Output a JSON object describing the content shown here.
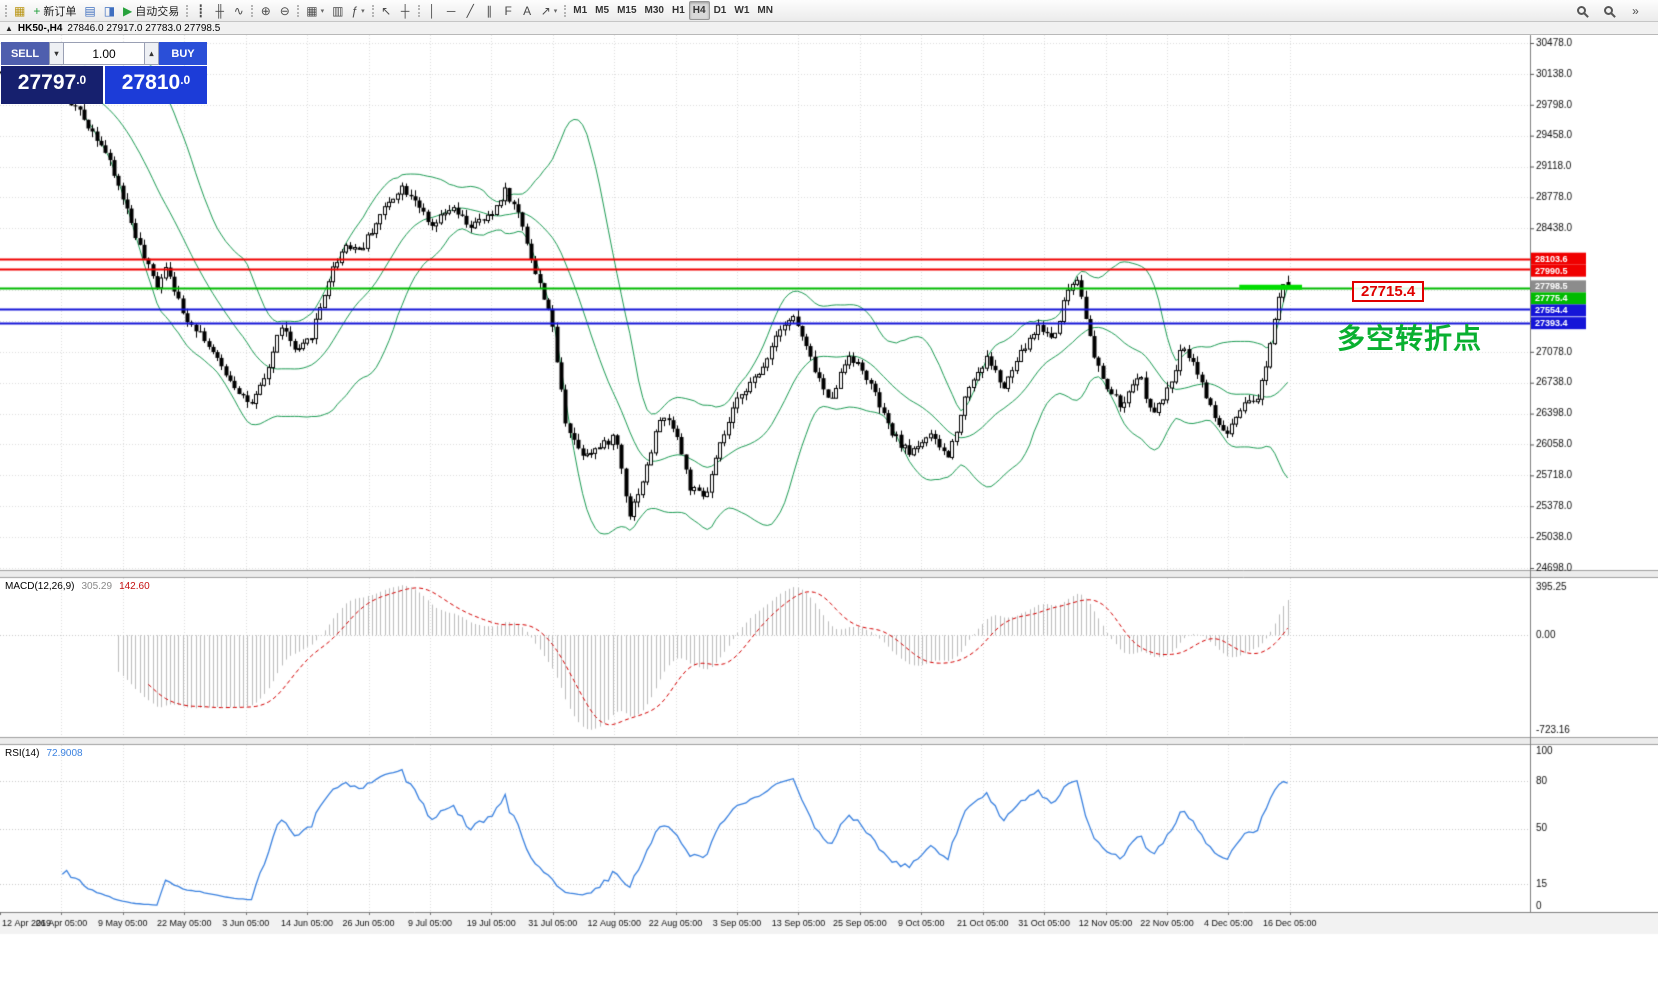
{
  "titlebar": {
    "icon": "▲",
    "symbol": "HK50-,H4",
    "ohlc": "27846.0 27917.0 27783.0 27798.5"
  },
  "trade_panel": {
    "sell_label": "SELL",
    "buy_label": "BUY",
    "volume": "1.00",
    "spin_down": "▾",
    "spin_up": "▴",
    "sell_main": "27797",
    "sell_frac": ".0",
    "buy_main": "27810",
    "buy_frac": ".0",
    "colors": {
      "sell_button": "#4f5fae",
      "buy_button": "#2a4fd8",
      "sell_price": "#16206e",
      "buy_price": "#1c3cd8"
    }
  },
  "toolbar": {
    "groups": [
      {
        "items": [
          {
            "name": "window-icon-button",
            "glyph": "▦",
            "color": "#b8930f"
          },
          {
            "name": "new-order-button",
            "glyph": "+",
            "color": "#1f9e3a",
            "label": "新订单"
          },
          {
            "name": "charts-button",
            "glyph": "▤",
            "color": "#3f6fc0"
          },
          {
            "name": "profiles-button",
            "glyph": "◨",
            "color": "#3f6fc0"
          },
          {
            "name": "autotrading-button",
            "glyph": "▶",
            "color": "#27a23c",
            "label": "自动交易"
          }
        ]
      },
      {
        "items": [
          {
            "name": "bar-chart-button",
            "glyph": "┋"
          },
          {
            "name": "candlestick-chart-button",
            "glyph": "╫"
          },
          {
            "name": "line-chart-button",
            "glyph": "∿"
          }
        ]
      },
      {
        "items": [
          {
            "name": "zoom-in-button",
            "glyph": "⊕"
          },
          {
            "name": "zoom-out-button",
            "glyph": "⊖"
          }
        ]
      },
      {
        "items": [
          {
            "name": "new-chart-button",
            "glyph": "▦",
            "caret": true
          },
          {
            "name": "tile-windows-button",
            "glyph": "▥"
          },
          {
            "name": "indicators-button",
            "glyph": "ƒ",
            "caret": true
          }
        ]
      },
      {
        "items": [
          {
            "name": "cursor-button",
            "glyph": "↖"
          },
          {
            "name": "crosshair-button",
            "glyph": "┼"
          }
        ]
      },
      {
        "items": [
          {
            "name": "vertical-line-button",
            "glyph": "│"
          },
          {
            "name": "horizontal-line-button",
            "glyph": "─"
          },
          {
            "name": "trendline-button",
            "glyph": "╱"
          },
          {
            "name": "channel-button",
            "glyph": "∥"
          },
          {
            "name": "fibonacci-button",
            "glyph": "F"
          },
          {
            "name": "text-button",
            "glyph": "A"
          },
          {
            "name": "arrows-button",
            "glyph": "↗",
            "caret": true
          }
        ]
      }
    ],
    "timeframes": [
      "M1",
      "M5",
      "M15",
      "M30",
      "H1",
      "H4",
      "D1",
      "W1",
      "MN"
    ],
    "active_timeframe": "H4",
    "right_items": [
      {
        "name": "search-button",
        "mag": true
      },
      {
        "name": "quick-search-button",
        "mag": true
      },
      {
        "name": "toolbar-overflow-button",
        "glyph": "»"
      }
    ]
  },
  "chart_data": {
    "type": "candlestick",
    "symbol": "HK50-",
    "timeframe": "H4",
    "last_candle": {
      "o": 27846.0,
      "h": 27917.0,
      "l": 27783.0,
      "c": 27798.5
    },
    "price_axis": {
      "min": 24698.0,
      "max": 30478.0,
      "step": 340.0
    },
    "time_labels": [
      "12 Apr 2019",
      "26 Apr 05:00",
      "9 May 05:00",
      "22 May 05:00",
      "3 Jun 05:00",
      "14 Jun 05:00",
      "26 Jun 05:00",
      "9 Jul 05:00",
      "19 Jul 05:00",
      "31 Jul 05:00",
      "12 Aug 05:00",
      "22 Aug 05:00",
      "3 Sep 05:00",
      "13 Sep 05:00",
      "25 Sep 05:00",
      "9 Oct 05:00",
      "21 Oct 05:00",
      "31 Oct 05:00",
      "12 Nov 05:00",
      "22 Nov 05:00",
      "4 Dec 05:00",
      "16 Dec 05:00"
    ],
    "candle_count": 300,
    "visible_fraction": 0.843,
    "seed": 42,
    "body_noise": 90,
    "wick_noise": 70,
    "price_path": [
      [
        0.0,
        30150
      ],
      [
        0.023,
        30050
      ],
      [
        0.047,
        29900
      ],
      [
        0.058,
        29750
      ],
      [
        0.078,
        29350
      ],
      [
        0.093,
        28800
      ],
      [
        0.109,
        28150
      ],
      [
        0.12,
        27800
      ],
      [
        0.128,
        28050
      ],
      [
        0.14,
        27500
      ],
      [
        0.155,
        27280
      ],
      [
        0.167,
        26980
      ],
      [
        0.182,
        26680
      ],
      [
        0.194,
        26480
      ],
      [
        0.205,
        26800
      ],
      [
        0.217,
        27380
      ],
      [
        0.229,
        27050
      ],
      [
        0.24,
        27230
      ],
      [
        0.256,
        27950
      ],
      [
        0.267,
        28260
      ],
      [
        0.279,
        28200
      ],
      [
        0.295,
        28600
      ],
      [
        0.31,
        28900
      ],
      [
        0.322,
        28760
      ],
      [
        0.333,
        28420
      ],
      [
        0.349,
        28660
      ],
      [
        0.364,
        28460
      ],
      [
        0.38,
        28560
      ],
      [
        0.391,
        28860
      ],
      [
        0.403,
        28560
      ],
      [
        0.415,
        27920
      ],
      [
        0.426,
        27520
      ],
      [
        0.438,
        26320
      ],
      [
        0.45,
        25960
      ],
      [
        0.465,
        26020
      ],
      [
        0.477,
        26160
      ],
      [
        0.488,
        25280
      ],
      [
        0.5,
        25720
      ],
      [
        0.512,
        26360
      ],
      [
        0.523,
        26260
      ],
      [
        0.535,
        25580
      ],
      [
        0.547,
        25460
      ],
      [
        0.558,
        26020
      ],
      [
        0.574,
        26620
      ],
      [
        0.589,
        26820
      ],
      [
        0.605,
        27360
      ],
      [
        0.616,
        27460
      ],
      [
        0.628,
        27020
      ],
      [
        0.643,
        26520
      ],
      [
        0.659,
        27060
      ],
      [
        0.674,
        26760
      ],
      [
        0.69,
        26220
      ],
      [
        0.705,
        25960
      ],
      [
        0.721,
        26160
      ],
      [
        0.736,
        25920
      ],
      [
        0.752,
        26700
      ],
      [
        0.767,
        27020
      ],
      [
        0.779,
        26660
      ],
      [
        0.791,
        27020
      ],
      [
        0.806,
        27360
      ],
      [
        0.818,
        27220
      ],
      [
        0.829,
        27760
      ],
      [
        0.837,
        27900
      ],
      [
        0.849,
        27020
      ],
      [
        0.86,
        26660
      ],
      [
        0.872,
        26460
      ],
      [
        0.884,
        26860
      ],
      [
        0.895,
        26360
      ],
      [
        0.907,
        26660
      ],
      [
        0.919,
        27160
      ],
      [
        0.93,
        26860
      ],
      [
        0.942,
        26360
      ],
      [
        0.953,
        26160
      ],
      [
        0.965,
        26460
      ],
      [
        0.977,
        26560
      ],
      [
        0.986,
        27120
      ],
      [
        0.995,
        27860
      ],
      [
        1.0,
        27798.5
      ]
    ],
    "bollinger": {
      "period": 20,
      "deviation": 2,
      "color": "#1d9c54"
    },
    "hlines": [
      {
        "price": 28103.6,
        "color": "#f00000",
        "width": 2
      },
      {
        "price": 27990.5,
        "color": "#f00000",
        "width": 2
      },
      {
        "price": 27775.4,
        "color": "#00bb00",
        "width": 2
      },
      {
        "price": 27554.4,
        "color": "#1515d8",
        "width": 2
      },
      {
        "price": 27393.4,
        "color": "#1515d8",
        "width": 2
      }
    ],
    "current_price_tag": {
      "price": 27798.5,
      "color": "#8c8c8c"
    },
    "highlight_segment": {
      "price": 27790,
      "x_from": 0.81,
      "x_to": 0.851,
      "color": "#00dd00",
      "width": 5
    },
    "annotations": {
      "callout_text": "27715.4",
      "turning_point_text": "多空转折点"
    },
    "macd": {
      "label": "MACD(12,26,9)",
      "value_main": "305.29",
      "value_signal": "142.60",
      "fast": 12,
      "slow": 26,
      "signal": 9,
      "axis_labels": [
        "395.25",
        "0.00",
        "-723.16"
      ],
      "histogram_color": "#bdbdbd",
      "signal_color": "#d40000"
    },
    "rsi": {
      "label": "RSI(14)",
      "value": "72.9008",
      "period": 14,
      "levels": [
        80,
        50,
        15
      ],
      "axis_labels": [
        "100",
        "80",
        "50",
        "15",
        "0"
      ],
      "color": "#3b82e0"
    },
    "grid_color": "#dcdcdc"
  }
}
